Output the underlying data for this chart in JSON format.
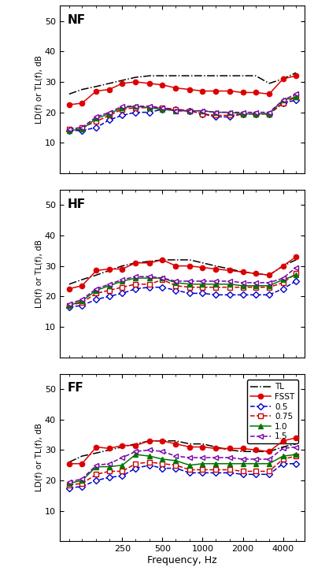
{
  "freqs": [
    100,
    125,
    160,
    200,
    250,
    315,
    400,
    500,
    630,
    800,
    1000,
    1250,
    1600,
    2000,
    2500,
    3150,
    4000,
    5000
  ],
  "panels": [
    "NF",
    "HF",
    "FF"
  ],
  "ylabel": "LD(f) or TL(f), dB",
  "xlabel": "Frequency, Hz",
  "ylim": [
    0,
    55
  ],
  "yticks": [
    10,
    20,
    30,
    40,
    50
  ],
  "xlim": [
    85,
    5800
  ],
  "xtick_vals": [
    250,
    500,
    1000,
    2000,
    4000
  ],
  "xtick_labels": [
    "250",
    "500",
    "1000",
    "2000",
    "4000"
  ],
  "TL": {
    "NF": [
      26,
      27.5,
      28.5,
      29.5,
      30.5,
      31.5,
      32,
      32,
      32,
      32,
      32,
      32,
      32,
      32,
      32,
      29.5,
      31,
      33
    ],
    "HF": [
      24,
      25.5,
      27,
      28.5,
      30,
      31,
      31.5,
      32,
      32,
      32,
      31,
      30,
      29,
      28,
      27.5,
      27,
      30,
      32
    ],
    "FF": [
      26,
      28,
      29,
      30,
      31,
      32,
      33,
      33,
      33,
      32,
      32,
      31,
      30,
      29.5,
      29.5,
      29.5,
      31,
      32
    ]
  },
  "FSST": {
    "NF": [
      22.5,
      23,
      27,
      27.5,
      29.5,
      30,
      29.5,
      29,
      28,
      27.5,
      27,
      27,
      27,
      26.5,
      26.5,
      26,
      31,
      32
    ],
    "HF": [
      22.5,
      23.5,
      28.5,
      29,
      29,
      31,
      31,
      32,
      30,
      30,
      29.5,
      29,
      28.5,
      28,
      27.5,
      27,
      30,
      33
    ],
    "FF": [
      25.5,
      25.5,
      31,
      30.5,
      31.5,
      31.5,
      33,
      33,
      32,
      31,
      31,
      30.5,
      30.5,
      30.5,
      30,
      29.5,
      33,
      34
    ]
  },
  "d05": {
    "NF": [
      14,
      14,
      15,
      17.5,
      19,
      20,
      20,
      21,
      21,
      20.5,
      19.5,
      18.5,
      18.5,
      19.5,
      19.5,
      19.5,
      23,
      24
    ],
    "HF": [
      16.5,
      17,
      19,
      20,
      21,
      22.5,
      23,
      23,
      22,
      21,
      21,
      20.5,
      20.5,
      20.5,
      20.5,
      20.5,
      22.5,
      25
    ],
    "FF": [
      17.5,
      18,
      20,
      21,
      21.5,
      24,
      25,
      24,
      24,
      22.5,
      22.5,
      22.5,
      22.5,
      22,
      22,
      22,
      25.5,
      25.5
    ]
  },
  "d075": {
    "NF": [
      14.5,
      15,
      17,
      19,
      21,
      21.5,
      21.5,
      21.5,
      21,
      20.5,
      19.5,
      19,
      19,
      19.5,
      19.5,
      19.5,
      23,
      25
    ],
    "HF": [
      17,
      18,
      21,
      22,
      23,
      24,
      24,
      25.5,
      23.5,
      23,
      23,
      23,
      23,
      23,
      23,
      23,
      24.5,
      27.5
    ],
    "FF": [
      18.5,
      19,
      22,
      23,
      23,
      25.5,
      26,
      25.5,
      25,
      23.5,
      23.5,
      23.5,
      23.5,
      23,
      23,
      23,
      27,
      28
    ]
  },
  "d10": {
    "NF": [
      14,
      14.5,
      18,
      19.5,
      21.5,
      22,
      21.5,
      21,
      20.5,
      20.5,
      20.5,
      20,
      20,
      19.5,
      19.5,
      19.5,
      24,
      25
    ],
    "HF": [
      17,
      18.5,
      22,
      23.5,
      25,
      26,
      26,
      26,
      24.5,
      24,
      24,
      24,
      24,
      23.5,
      23.5,
      23.5,
      25.5,
      27
    ],
    "FF": [
      19,
      20,
      24.5,
      24.5,
      25,
      28.5,
      28,
      27,
      26.5,
      25,
      25.5,
      25.5,
      25.5,
      25.5,
      25.5,
      25.5,
      28,
      28.5
    ]
  },
  "d15": {
    "NF": [
      14.5,
      15,
      18.5,
      20,
      22,
      22,
      22,
      21.5,
      20.5,
      20.5,
      20.5,
      20,
      20,
      20,
      20,
      20,
      24,
      26
    ],
    "HF": [
      17.5,
      19,
      22.5,
      24,
      25.5,
      26.5,
      26.5,
      26,
      25,
      25,
      25,
      25,
      25,
      24.5,
      24.5,
      24.5,
      26,
      29.5
    ],
    "FF": [
      19.5,
      20.5,
      25,
      25.5,
      27.5,
      29.5,
      30,
      29.5,
      28,
      27.5,
      27.5,
      27.5,
      27.5,
      27,
      27,
      27,
      30.5,
      31
    ]
  },
  "colors": {
    "TL": "#000000",
    "FSST": "#dd0000",
    "d05": "#0000cc",
    "d075": "#cc0000",
    "d10": "#007700",
    "d15": "#7700aa"
  }
}
